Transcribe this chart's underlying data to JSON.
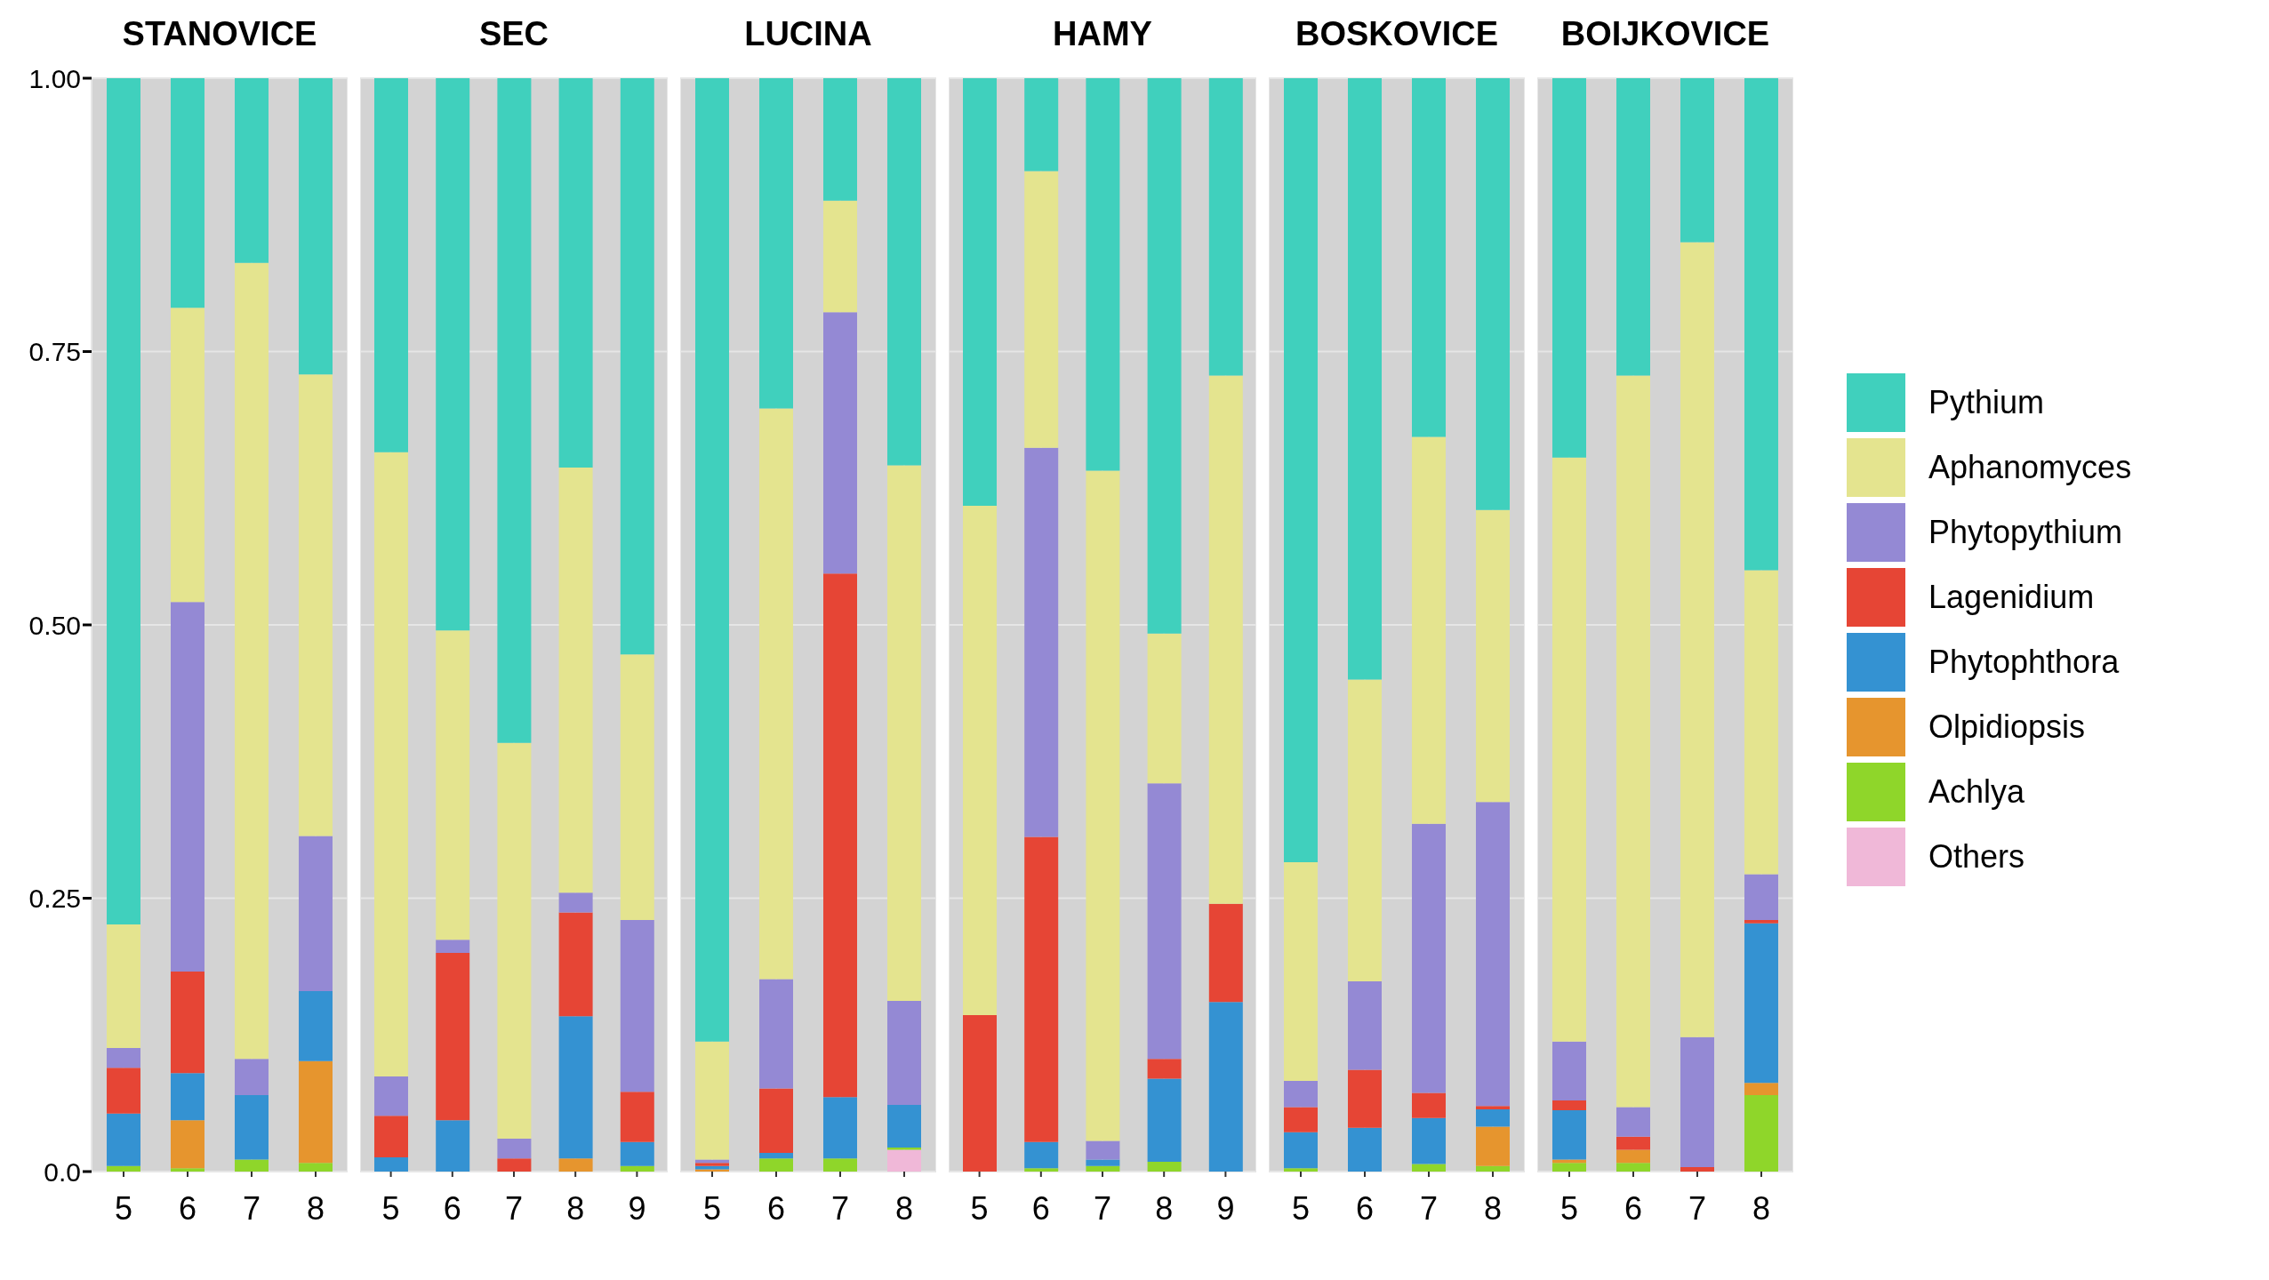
{
  "chart_data": [
    {
      "type": "bar",
      "stacked": true,
      "title": "STANOVICE",
      "categories": [
        "5",
        "6",
        "7",
        "8"
      ],
      "ylim": [
        0,
        1
      ],
      "yticks": [
        {
          "value": 0,
          "label": "0.0"
        },
        {
          "value": 0.25,
          "label": "0.25"
        },
        {
          "value": 0.5,
          "label": "0.50"
        },
        {
          "value": 0.75,
          "label": "0.75"
        },
        {
          "value": 1,
          "label": "1.00"
        }
      ],
      "grid": true,
      "series": [
        {
          "color": "#f0b8d8",
          "values": [
            0,
            0,
            0,
            0
          ]
        },
        {
          "color": "#8fd62a",
          "values": [
            0.005,
            0.003,
            0.011,
            0.008
          ]
        },
        {
          "color": "#e6952e",
          "values": [
            0,
            0.044,
            0,
            0.093
          ]
        },
        {
          "color": "#3492d2",
          "values": [
            0.048,
            0.043,
            0.059,
            0.064
          ]
        },
        {
          "color": "#e64535",
          "values": [
            0.042,
            0.093,
            0,
            0
          ]
        },
        {
          "color": "#9489d4",
          "values": [
            0.018,
            0.338,
            0.033,
            0.142
          ]
        },
        {
          "color": "#e4e48f",
          "values": [
            0.113,
            0.269,
            0.728,
            0.422
          ]
        },
        {
          "color": "#40d0bd",
          "values": [
            0.774,
            0.21,
            0.169,
            0.271
          ]
        }
      ]
    },
    {
      "type": "bar",
      "stacked": true,
      "title": "SEC",
      "categories": [
        "5",
        "6",
        "7",
        "8",
        "9"
      ],
      "ylim": [
        0,
        1
      ],
      "yticks": [
        0,
        0.25,
        0.5,
        0.75,
        1
      ],
      "tick_labels": "x",
      "grid": true,
      "series": [
        {
          "color": "#f0b8d8",
          "values": [
            0,
            0,
            0,
            0,
            0
          ]
        },
        {
          "color": "#8fd62a",
          "values": [
            0,
            0,
            0,
            0,
            0.005
          ]
        },
        {
          "color": "#e6952e",
          "values": [
            0,
            0,
            0,
            0.012,
            0
          ]
        },
        {
          "color": "#3492d2",
          "values": [
            0.013,
            0.047,
            0,
            0.13,
            0.022
          ]
        },
        {
          "color": "#e64535",
          "values": [
            0.038,
            0.153,
            0.012,
            0.095,
            0.046
          ]
        },
        {
          "color": "#9489d4",
          "values": [
            0.036,
            0.012,
            0.018,
            0.018,
            0.157
          ]
        },
        {
          "color": "#e4e48f",
          "values": [
            0.571,
            0.283,
            0.362,
            0.389,
            0.243
          ]
        },
        {
          "color": "#40d0bd",
          "values": [
            0.342,
            0.505,
            0.608,
            0.356,
            0.527
          ]
        }
      ]
    },
    {
      "type": "bar",
      "stacked": true,
      "title": "LUCINA",
      "categories": [
        "5",
        "6",
        "7",
        "8"
      ],
      "ylim": [
        0,
        1
      ],
      "yticks": [
        0,
        0.25,
        0.5,
        0.75,
        1
      ],
      "tick_labels": "x",
      "grid": true,
      "series": [
        {
          "color": "#f0b8d8",
          "values": [
            0,
            0,
            0,
            0.02
          ]
        },
        {
          "color": "#8fd62a",
          "values": [
            0,
            0.012,
            0.012,
            0.002
          ]
        },
        {
          "color": "#e6952e",
          "values": [
            0.002,
            0,
            0,
            0
          ]
        },
        {
          "color": "#3492d2",
          "values": [
            0.003,
            0.005,
            0.056,
            0.039
          ]
        },
        {
          "color": "#e64535",
          "values": [
            0.003,
            0.059,
            0.479,
            0
          ]
        },
        {
          "color": "#9489d4",
          "values": [
            0.003,
            0.1,
            0.239,
            0.095
          ]
        },
        {
          "color": "#e4e48f",
          "values": [
            0.108,
            0.522,
            0.102,
            0.49
          ]
        },
        {
          "color": "#40d0bd",
          "values": [
            0.881,
            0.302,
            0.112,
            0.354
          ]
        }
      ]
    },
    {
      "type": "bar",
      "stacked": true,
      "title": "HAMY",
      "categories": [
        "5",
        "6",
        "7",
        "8",
        "9"
      ],
      "ylim": [
        0,
        1
      ],
      "yticks": [
        0,
        0.25,
        0.5,
        0.75,
        1
      ],
      "tick_labels": "x",
      "grid": true,
      "series": [
        {
          "color": "#f0b8d8",
          "values": [
            0,
            0,
            0,
            0,
            0
          ]
        },
        {
          "color": "#8fd62a",
          "values": [
            0,
            0.003,
            0.005,
            0.009,
            0
          ]
        },
        {
          "color": "#e6952e",
          "values": [
            0,
            0,
            0,
            0,
            0
          ]
        },
        {
          "color": "#3492d2",
          "values": [
            0,
            0.024,
            0.006,
            0.076,
            0.155
          ]
        },
        {
          "color": "#e64535",
          "values": [
            0.143,
            0.279,
            0,
            0.018,
            0.09
          ]
        },
        {
          "color": "#9489d4",
          "values": [
            0,
            0.356,
            0.017,
            0.252,
            0
          ]
        },
        {
          "color": "#e4e48f",
          "values": [
            0.466,
            0.253,
            0.613,
            0.137,
            0.483
          ]
        },
        {
          "color": "#40d0bd",
          "values": [
            0.391,
            0.085,
            0.359,
            0.508,
            0.272
          ]
        }
      ]
    },
    {
      "type": "bar",
      "stacked": true,
      "title": "BOSKOVICE",
      "categories": [
        "5",
        "6",
        "7",
        "8"
      ],
      "ylim": [
        0,
        1
      ],
      "yticks": [
        0,
        0.25,
        0.5,
        0.75,
        1
      ],
      "tick_labels": "x",
      "grid": true,
      "series": [
        {
          "color": "#f0b8d8",
          "values": [
            0,
            0,
            0,
            0
          ]
        },
        {
          "color": "#8fd62a",
          "values": [
            0.003,
            0,
            0.007,
            0.005
          ]
        },
        {
          "color": "#e6952e",
          "values": [
            0,
            0,
            0,
            0.036
          ]
        },
        {
          "color": "#3492d2",
          "values": [
            0.033,
            0.04,
            0.042,
            0.016
          ]
        },
        {
          "color": "#e64535",
          "values": [
            0.023,
            0.053,
            0.023,
            0.003
          ]
        },
        {
          "color": "#9489d4",
          "values": [
            0.024,
            0.081,
            0.246,
            0.278
          ]
        },
        {
          "color": "#e4e48f",
          "values": [
            0.2,
            0.276,
            0.354,
            0.267
          ]
        },
        {
          "color": "#40d0bd",
          "values": [
            0.717,
            0.55,
            0.328,
            0.395
          ]
        }
      ]
    },
    {
      "type": "bar",
      "stacked": true,
      "title": "BOIJKOVICE",
      "categories": [
        "5",
        "6",
        "7",
        "8"
      ],
      "ylim": [
        0,
        1
      ],
      "yticks": [
        0,
        0.25,
        0.5,
        0.75,
        1
      ],
      "tick_labels": "x",
      "grid": true,
      "legend": "right",
      "series": [
        {
          "name": "Others",
          "color": "#f0b8d8",
          "values": [
            0,
            0,
            0,
            0
          ]
        },
        {
          "name": "Achlya",
          "color": "#8fd62a",
          "values": [
            0.008,
            0.008,
            0,
            0.07
          ]
        },
        {
          "name": "Olpidiopsis",
          "color": "#e6952e",
          "values": [
            0.003,
            0.012,
            0,
            0.011
          ]
        },
        {
          "name": "Phytophthora",
          "color": "#3492d2",
          "values": [
            0.045,
            0,
            0,
            0.146
          ]
        },
        {
          "name": "Lagenidium",
          "color": "#e64535",
          "values": [
            0.009,
            0.012,
            0.004,
            0.003
          ]
        },
        {
          "name": "Phytopythium",
          "color": "#9489d4",
          "values": [
            0.054,
            0.027,
            0.119,
            0.042
          ]
        },
        {
          "name": "Aphanomyces",
          "color": "#e4e48f",
          "values": [
            0.534,
            0.669,
            0.727,
            0.278
          ]
        },
        {
          "name": "Pythium",
          "color": "#40d0bd",
          "values": [
            0.347,
            0.272,
            0.15,
            0.45
          ]
        }
      ]
    }
  ]
}
